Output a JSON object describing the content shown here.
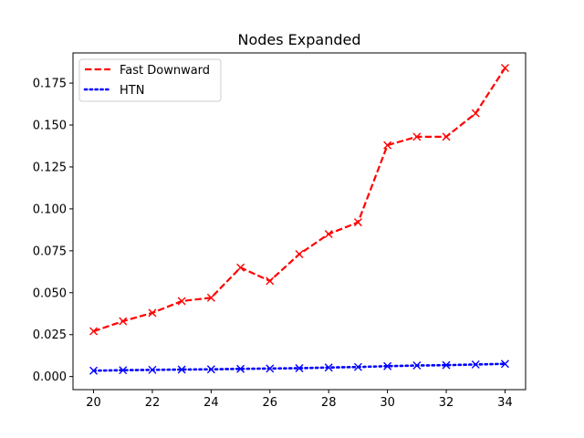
{
  "chart_data": {
    "type": "line",
    "title": "Nodes Expanded",
    "xlabel": "",
    "ylabel": "",
    "x": [
      20,
      21,
      22,
      23,
      24,
      25,
      26,
      27,
      28,
      29,
      30,
      31,
      32,
      33,
      34
    ],
    "xlim": [
      19.3,
      34.7
    ],
    "ylim": [
      -0.0078,
      0.193
    ],
    "xticks": [
      20,
      22,
      24,
      26,
      28,
      30,
      32,
      34
    ],
    "yticks": [
      0.0,
      0.025,
      0.05,
      0.075,
      0.1,
      0.125,
      0.15,
      0.175
    ],
    "ytick_labels": [
      "0.000",
      "0.025",
      "0.050",
      "0.075",
      "0.100",
      "0.125",
      "0.150",
      "0.175"
    ],
    "grid": false,
    "legend_position": "top-left",
    "series": [
      {
        "name": "Fast Downward",
        "color": "#ff0000",
        "line_style": "dashed",
        "marker": "x",
        "values": [
          0.027,
          0.033,
          0.038,
          0.045,
          0.047,
          0.065,
          0.057,
          0.073,
          0.085,
          0.092,
          0.138,
          0.143,
          0.143,
          0.157,
          0.184
        ]
      },
      {
        "name": "HTN",
        "color": "#0000ff",
        "line_style": "dotted",
        "marker": "x",
        "values": [
          0.0035,
          0.0038,
          0.004,
          0.0042,
          0.0043,
          0.0046,
          0.0048,
          0.005,
          0.0054,
          0.0057,
          0.0062,
          0.0066,
          0.0068,
          0.0072,
          0.0076
        ]
      }
    ]
  }
}
